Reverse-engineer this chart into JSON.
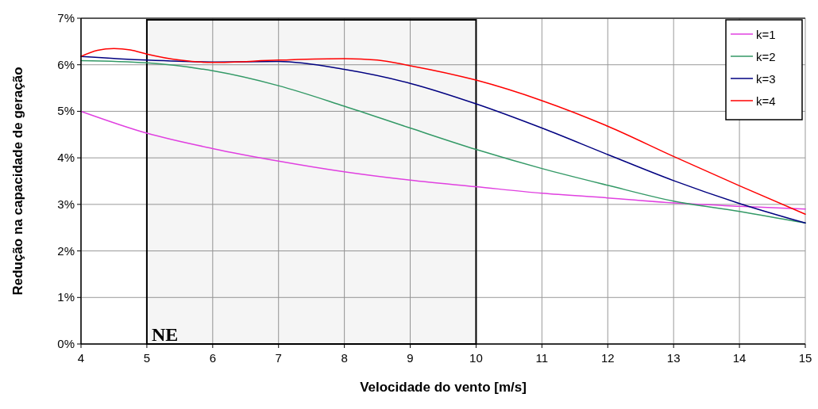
{
  "chart_data": {
    "type": "line",
    "xlabel": "Velocidade do vento [m/s]",
    "ylabel": "Redução na capacidade de geração",
    "xlim": [
      4,
      15
    ],
    "xticks": [
      4,
      5,
      6,
      7,
      8,
      9,
      10,
      11,
      12,
      13,
      14,
      15
    ],
    "ylim": [
      0,
      7
    ],
    "yticks": [
      {
        "value": 0,
        "label": "0%"
      },
      {
        "value": 1,
        "label": "1%"
      },
      {
        "value": 2,
        "label": "2%"
      },
      {
        "value": 3,
        "label": "3%"
      },
      {
        "value": 4,
        "label": "4%"
      },
      {
        "value": 5,
        "label": "5%"
      },
      {
        "value": 6,
        "label": "6%"
      },
      {
        "value": 7,
        "label": "7%"
      }
    ],
    "grid": true,
    "legend": "top right",
    "marker": "none",
    "line_style": "solid",
    "bands": [
      {
        "axis": "x",
        "from": 5,
        "to": 10,
        "label": "NE",
        "color": "#000000"
      }
    ],
    "series": [
      {
        "name": "k=1",
        "color": "#e040e0",
        "x": [
          4,
          5,
          6,
          7,
          8,
          9,
          10,
          11,
          12,
          13,
          14,
          15
        ],
        "values": [
          5.0,
          4.53,
          4.2,
          3.93,
          3.7,
          3.52,
          3.38,
          3.24,
          3.14,
          3.03,
          2.96,
          2.9
        ]
      },
      {
        "name": "k=2",
        "color": "#339966",
        "x": [
          4,
          5,
          6,
          7,
          8,
          9,
          10,
          11,
          12,
          13,
          14,
          15
        ],
        "values": [
          6.09,
          6.04,
          5.87,
          5.55,
          5.11,
          4.64,
          4.18,
          3.77,
          3.41,
          3.07,
          2.85,
          2.6
        ]
      },
      {
        "name": "k=3",
        "color": "#000080",
        "x": [
          4,
          5,
          6,
          7,
          8,
          9,
          10,
          11,
          12,
          13,
          14,
          15
        ],
        "values": [
          6.18,
          6.1,
          6.06,
          6.07,
          5.9,
          5.6,
          5.16,
          4.64,
          4.07,
          3.51,
          3.02,
          2.6
        ]
      },
      {
        "name": "k=4",
        "color": "#ff0000",
        "x": [
          4,
          4.25,
          4.5,
          4.75,
          5,
          5.5,
          6,
          7,
          8,
          8.5,
          9,
          10,
          11,
          12,
          13,
          14,
          15
        ],
        "values": [
          6.18,
          6.31,
          6.35,
          6.32,
          6.23,
          6.1,
          6.05,
          6.1,
          6.13,
          6.1,
          5.98,
          5.67,
          5.23,
          4.68,
          4.03,
          3.4,
          2.79
        ]
      }
    ]
  }
}
